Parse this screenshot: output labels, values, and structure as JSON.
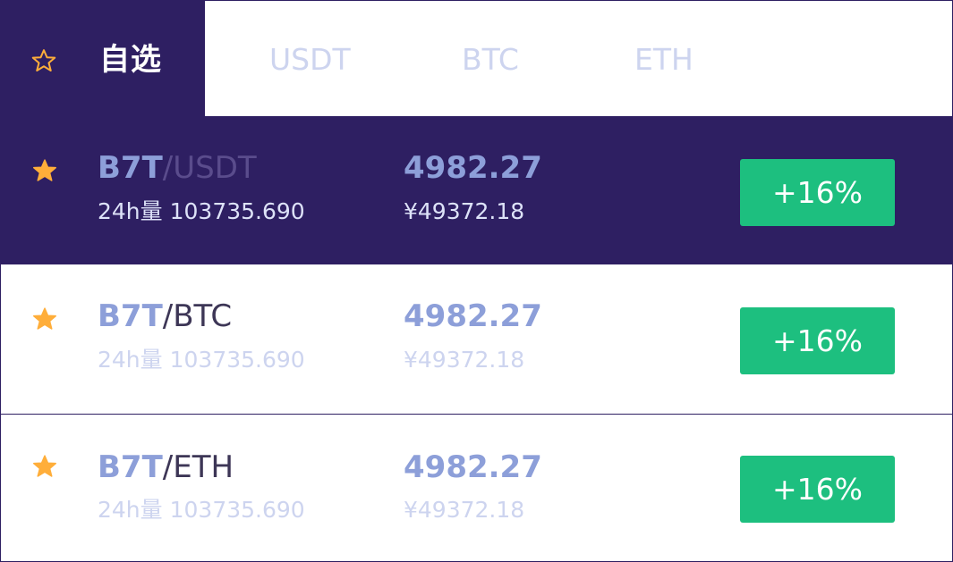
{
  "tabs": {
    "active_label": "自选",
    "items": [
      {
        "label": "USDT"
      },
      {
        "label": "BTC"
      },
      {
        "label": "ETH"
      }
    ]
  },
  "colors": {
    "header_dark": "#2e1f62",
    "star_orange": "#ffae3a",
    "positive_green": "#1dbf7f",
    "accent_blue": "#8d9fd9",
    "muted_text": "#cdd4ef"
  },
  "icons": {
    "tab_star": "star-outline-icon",
    "row_star": "star-filled-icon"
  },
  "rows": [
    {
      "base": "B7T",
      "quote": "/USDT",
      "volume": "24h量 103735.690",
      "price": "4982.27",
      "cny": "¥49372.18",
      "change": "+16%"
    },
    {
      "base": "B7T",
      "quote": "/BTC",
      "volume": "24h量 103735.690",
      "price": "4982.27",
      "cny": "¥49372.18",
      "change": "+16%"
    },
    {
      "base": "B7T",
      "quote": "/ETH",
      "volume": "24h量 103735.690",
      "price": "4982.27",
      "cny": "¥49372.18",
      "change": "+16%"
    }
  ]
}
